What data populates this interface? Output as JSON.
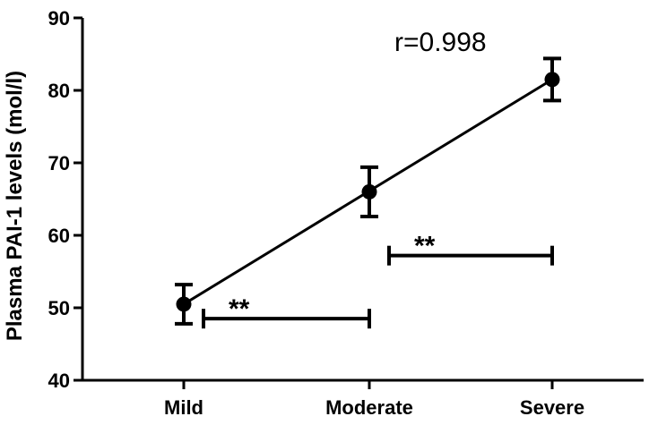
{
  "chart_data": {
    "type": "scatter",
    "ylabel": "Plasma PAI-1 levels (mol/l)",
    "xlabel": "",
    "categories": [
      "Mild",
      "Moderate",
      "Severe"
    ],
    "y_ticks": [
      "40",
      "50",
      "60",
      "70",
      "80",
      "90"
    ],
    "ylim": [
      40,
      90
    ],
    "series": [
      {
        "points": [
          {
            "x": "Mild",
            "y": 50.5,
            "err_low": 47.8,
            "err_high": 53.2
          },
          {
            "x": "Moderate",
            "y": 66.0,
            "err_low": 62.6,
            "err_high": 69.4
          },
          {
            "x": "Severe",
            "y": 81.5,
            "err_low": 78.6,
            "err_high": 84.4
          }
        ]
      }
    ],
    "fit_line": {
      "from": {
        "x": "Mild",
        "y": 50.5
      },
      "to": {
        "x": "Severe",
        "y": 81.5
      }
    },
    "annotation": "r=0.998",
    "significance_bars": [
      {
        "label": "**",
        "from": "Mild",
        "to": "Moderate",
        "y": 48.5
      },
      {
        "label": "**",
        "from": "Moderate",
        "to": "Severe",
        "y": 57.2
      }
    ],
    "grid": false,
    "legend": "none"
  }
}
